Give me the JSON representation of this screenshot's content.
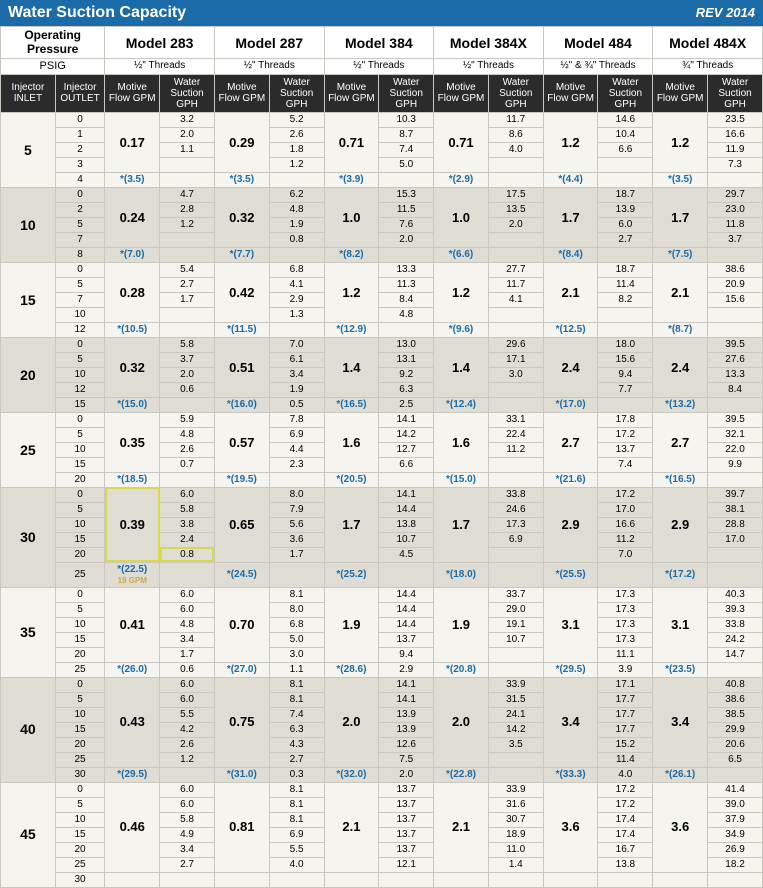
{
  "header": {
    "title": "Water Suction Capacity",
    "rev": "REV 2014"
  },
  "op_pressure_label": "Operating Pressure",
  "psig_label": "PSIG",
  "injector_inlet_label": "Injector INLET",
  "injector_outlet_label": "Injector OUTLET",
  "motive_flow_label": "Motive Flow GPM",
  "water_suction_label": "Water Suction GPH",
  "models": [
    {
      "name": "Model 283",
      "threads": "½\" Threads"
    },
    {
      "name": "Model 287",
      "threads": "½\" Threads"
    },
    {
      "name": "Model 384",
      "threads": "½\" Threads"
    },
    {
      "name": "Model 384X",
      "threads": "½\" Threads"
    },
    {
      "name": "Model 484",
      "threads": "½\" & ¾\" Threads"
    },
    {
      "name": "Model 484X",
      "threads": "¾\" Threads"
    }
  ],
  "highlight_note": "19 GPM",
  "groups": [
    {
      "pressure": "5",
      "shaded": false,
      "outlets": [
        "0",
        "1",
        "2",
        "3",
        "4"
      ],
      "motive": [
        "0.17",
        "0.29",
        "0.71",
        "0.71",
        "1.2",
        "1.2"
      ],
      "star": [
        "*(3.5)",
        "*(3.5)",
        "*(3.9)",
        "*(2.9)",
        "*(4.4)",
        "*(3.5)"
      ],
      "ws": [
        [
          "3.2",
          "2.0",
          "1.1",
          "",
          ""
        ],
        [
          "5.2",
          "2.6",
          "1.8",
          "1.2",
          ""
        ],
        [
          "10.3",
          "8.7",
          "7.4",
          "5.0",
          ""
        ],
        [
          "11.7",
          "8.6",
          "4.0",
          "",
          ""
        ],
        [
          "14.6",
          "10.4",
          "6.6",
          "",
          ""
        ],
        [
          "23.5",
          "16.6",
          "11.9",
          "7.3",
          ""
        ]
      ]
    },
    {
      "pressure": "10",
      "shaded": true,
      "outlets": [
        "0",
        "2",
        "5",
        "7",
        "8"
      ],
      "motive": [
        "0.24",
        "0.32",
        "1.0",
        "1.0",
        "1.7",
        "1.7"
      ],
      "star": [
        "*(7.0)",
        "*(7.7)",
        "*(8.2)",
        "*(6.6)",
        "*(8.4)",
        "*(7.5)"
      ],
      "ws": [
        [
          "4.7",
          "2.8",
          "1.2",
          "",
          ""
        ],
        [
          "6.2",
          "4.8",
          "1.9",
          "0.8",
          ""
        ],
        [
          "15.3",
          "11.5",
          "7.6",
          "2.0",
          ""
        ],
        [
          "17.5",
          "13.5",
          "2.0",
          "",
          ""
        ],
        [
          "18.7",
          "13.9",
          "6.0",
          "2.7",
          ""
        ],
        [
          "29.7",
          "23.0",
          "11.8",
          "3.7",
          ""
        ]
      ]
    },
    {
      "pressure": "15",
      "shaded": false,
      "outlets": [
        "0",
        "5",
        "7",
        "10",
        "12"
      ],
      "motive": [
        "0.28",
        "0.42",
        "1.2",
        "1.2",
        "2.1",
        "2.1"
      ],
      "star": [
        "*(10.5)",
        "*(11.5)",
        "*(12.9)",
        "*(9.6)",
        "*(12.5)",
        "*(8.7)"
      ],
      "ws": [
        [
          "5.4",
          "2.7",
          "1.7",
          "",
          ""
        ],
        [
          "6.8",
          "4.1",
          "2.9",
          "1.3",
          ""
        ],
        [
          "13.3",
          "11.3",
          "8.4",
          "4.8",
          ""
        ],
        [
          "27.7",
          "11.7",
          "4.1",
          "",
          ""
        ],
        [
          "18.7",
          "11.4",
          "8.2",
          "",
          ""
        ],
        [
          "38.6",
          "20.9",
          "15.6",
          "",
          ""
        ]
      ]
    },
    {
      "pressure": "20",
      "shaded": true,
      "outlets": [
        "0",
        "5",
        "10",
        "12",
        "15"
      ],
      "motive": [
        "0.32",
        "0.51",
        "1.4",
        "1.4",
        "2.4",
        "2.4"
      ],
      "star": [
        "*(15.0)",
        "*(16.0)",
        "*(16.5)",
        "*(12.4)",
        "*(17.0)",
        "*(13.2)"
      ],
      "ws": [
        [
          "5.8",
          "3.7",
          "2.0",
          "0.6",
          ""
        ],
        [
          "7.0",
          "6.1",
          "3.4",
          "1.9",
          "0.5"
        ],
        [
          "13.0",
          "13.1",
          "9.2",
          "6.3",
          "2.5"
        ],
        [
          "29.6",
          "17.1",
          "3.0",
          "",
          ""
        ],
        [
          "18.0",
          "15.6",
          "9.4",
          "7.7",
          ""
        ],
        [
          "39.5",
          "27.6",
          "13.3",
          "8.4",
          ""
        ]
      ]
    },
    {
      "pressure": "25",
      "shaded": false,
      "outlets": [
        "0",
        "5",
        "10",
        "15",
        "20"
      ],
      "motive": [
        "0.35",
        "0.57",
        "1.6",
        "1.6",
        "2.7",
        "2.7"
      ],
      "star": [
        "*(18.5)",
        "*(19.5)",
        "*(20.5)",
        "*(15.0)",
        "*(21.6)",
        "*(16.5)"
      ],
      "ws": [
        [
          "5.9",
          "4.8",
          "2.6",
          "0.7",
          ""
        ],
        [
          "7.8",
          "6.9",
          "4.4",
          "2.3",
          ""
        ],
        [
          "14.1",
          "14.2",
          "12.7",
          "6.6",
          ""
        ],
        [
          "33.1",
          "22.4",
          "11.2",
          "",
          ""
        ],
        [
          "17.8",
          "17.2",
          "13.7",
          "7.4",
          ""
        ],
        [
          "39.5",
          "32.1",
          "22.0",
          "9.9",
          ""
        ]
      ]
    },
    {
      "pressure": "30",
      "shaded": true,
      "outlets": [
        "0",
        "5",
        "10",
        "15",
        "20",
        "25"
      ],
      "motive": [
        "0.39",
        "0.65",
        "1.7",
        "1.7",
        "2.9",
        "2.9"
      ],
      "star": [
        "*(22.5)",
        "*(24.5)",
        "*(25.2)",
        "*(18.0)",
        "*(25.5)",
        "*(17.2)"
      ],
      "highlight_motive_index": 0,
      "ws": [
        [
          "6.0",
          "5.8",
          "3.8",
          "2.4",
          "0.8",
          ""
        ],
        [
          "8.0",
          "7.9",
          "5.6",
          "3.6",
          "1.7",
          ""
        ],
        [
          "14.1",
          "14.4",
          "13.8",
          "10.7",
          "4.5",
          ""
        ],
        [
          "33.8",
          "24.6",
          "17.3",
          "6.9",
          "",
          ""
        ],
        [
          "17.2",
          "17.0",
          "16.6",
          "11.2",
          "7.0",
          ""
        ],
        [
          "39.7",
          "38.1",
          "28.8",
          "17.0",
          "",
          ""
        ]
      ]
    },
    {
      "pressure": "35",
      "shaded": false,
      "outlets": [
        "0",
        "5",
        "10",
        "15",
        "20",
        "25"
      ],
      "motive": [
        "0.41",
        "0.70",
        "1.9",
        "1.9",
        "3.1",
        "3.1"
      ],
      "star": [
        "*(26.0)",
        "*(27.0)",
        "*(28.6)",
        "*(20.8)",
        "*(29.5)",
        "*(23.5)"
      ],
      "ws": [
        [
          "6.0",
          "6.0",
          "4.8",
          "3.4",
          "1.7",
          "0.6"
        ],
        [
          "8.1",
          "8.0",
          "6.8",
          "5.0",
          "3.0",
          "1.1"
        ],
        [
          "14.4",
          "14.4",
          "14.4",
          "13.7",
          "9.4",
          "2.9"
        ],
        [
          "33.7",
          "29.0",
          "19.1",
          "10.7",
          "",
          ""
        ],
        [
          "17.3",
          "17.3",
          "17.3",
          "17.3",
          "11.1",
          "3.9"
        ],
        [
          "40.3",
          "39.3",
          "33.8",
          "24.2",
          "14.7",
          ""
        ]
      ]
    },
    {
      "pressure": "40",
      "shaded": true,
      "outlets": [
        "0",
        "5",
        "10",
        "15",
        "20",
        "25",
        "30"
      ],
      "motive": [
        "0.43",
        "0.75",
        "2.0",
        "2.0",
        "3.4",
        "3.4"
      ],
      "star": [
        "*(29.5)",
        "*(31.0)",
        "*(32.0)",
        "*(22.8)",
        "*(33.3)",
        "*(26.1)"
      ],
      "ws": [
        [
          "6.0",
          "6.0",
          "5.5",
          "4.2",
          "2.6",
          "1.2",
          ""
        ],
        [
          "8.1",
          "8.1",
          "7.4",
          "6.3",
          "4.3",
          "2.7",
          "0.3"
        ],
        [
          "14.1",
          "14.1",
          "13.9",
          "13.9",
          "12.6",
          "7.5",
          "2.0"
        ],
        [
          "33.9",
          "31.5",
          "24.1",
          "14.2",
          "3.5",
          "",
          ""
        ],
        [
          "17.1",
          "17.7",
          "17.7",
          "17.7",
          "15.2",
          "11.4",
          "4.0"
        ],
        [
          "40.8",
          "38.6",
          "38.5",
          "29.9",
          "20.6",
          "6.5",
          ""
        ]
      ]
    },
    {
      "pressure": "45",
      "shaded": false,
      "outlets": [
        "0",
        "5",
        "10",
        "15",
        "20",
        "25",
        "30"
      ],
      "motive": [
        "0.46",
        "0.81",
        "2.1",
        "2.1",
        "3.6",
        "3.6"
      ],
      "star": [
        "",
        "",
        "",
        "",
        "",
        ""
      ],
      "ws": [
        [
          "6.0",
          "6.0",
          "5.8",
          "4.9",
          "3.4",
          "2.7",
          ""
        ],
        [
          "8.1",
          "8.1",
          "8.1",
          "6.9",
          "5.5",
          "4.0",
          ""
        ],
        [
          "13.7",
          "13.7",
          "13.7",
          "13.7",
          "13.7",
          "12.1",
          ""
        ],
        [
          "33.9",
          "31.6",
          "30.7",
          "18.9",
          "11.0",
          "1.4",
          ""
        ],
        [
          "17.2",
          "17.2",
          "17.4",
          "17.4",
          "16.7",
          "13.8",
          ""
        ],
        [
          "41.4",
          "39.0",
          "37.9",
          "34.9",
          "26.9",
          "18.2",
          ""
        ]
      ]
    }
  ]
}
